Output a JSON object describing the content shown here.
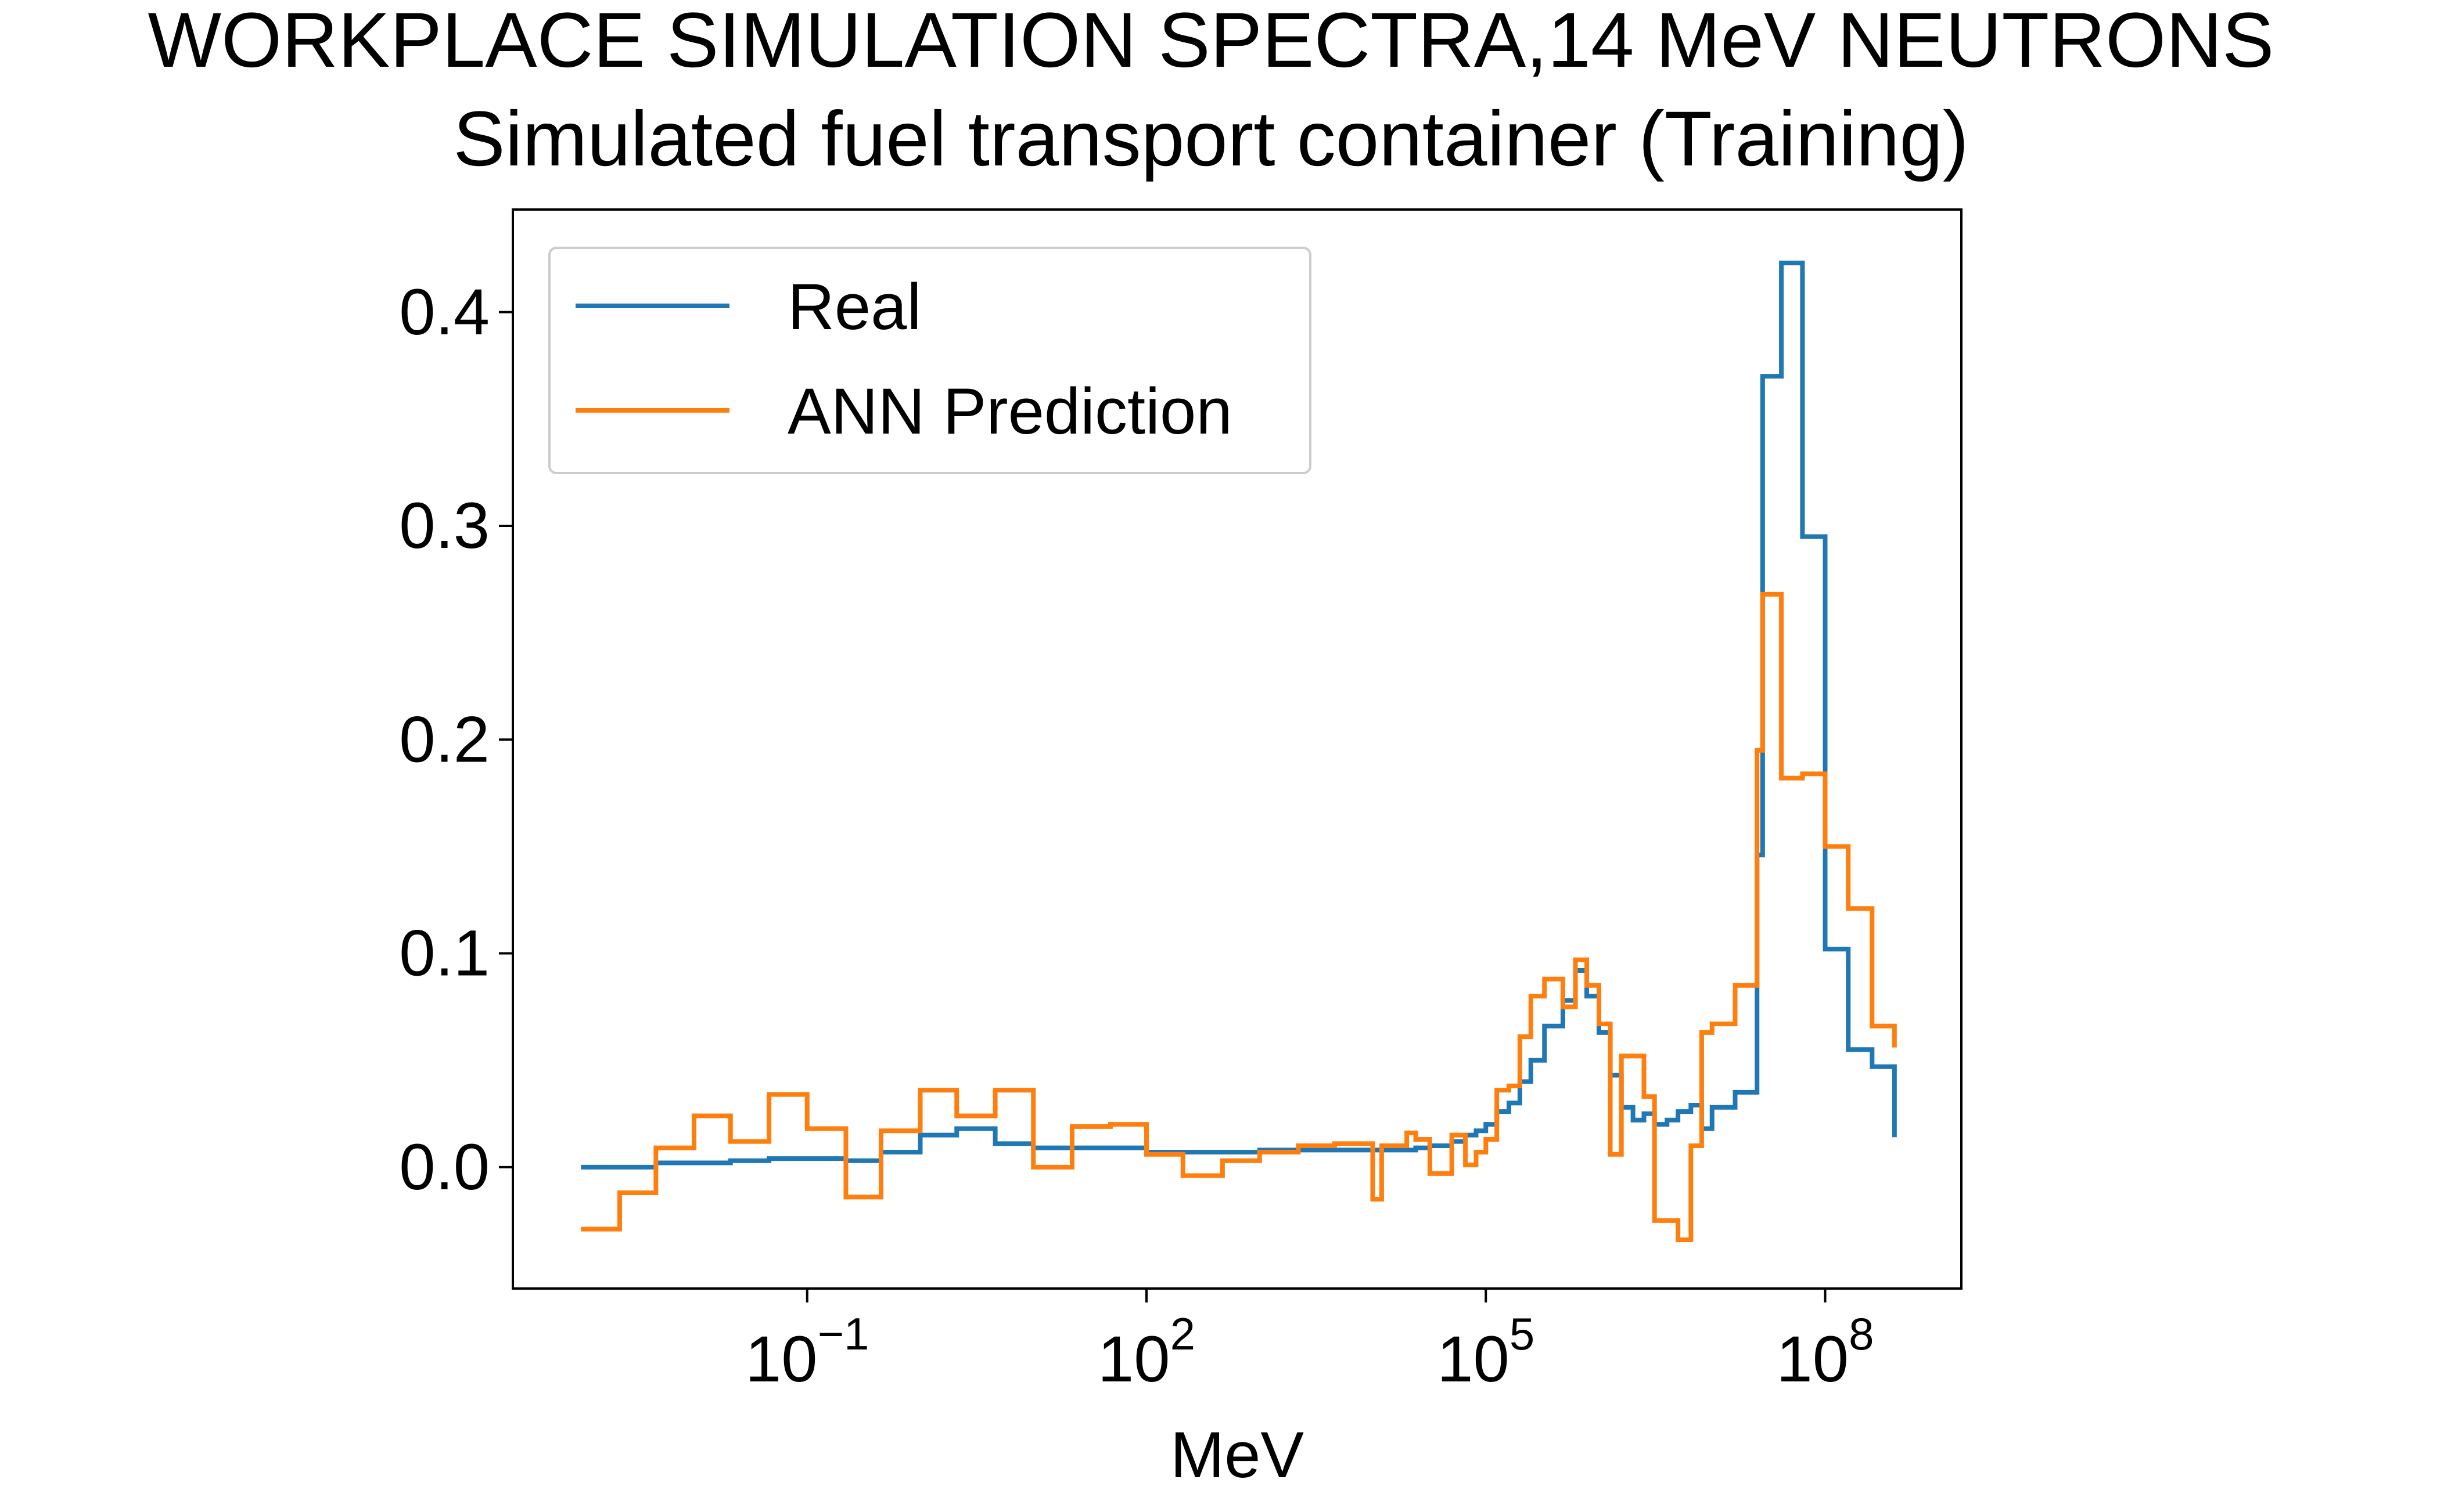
{
  "chart_data": {
    "type": "line",
    "step": "post",
    "title": "WORKPLACE SIMULATION SPECTRA,14 MeV NEUTRONS",
    "subtitle": "Simulated fuel transport container (Training)",
    "x_label": "MeV",
    "x_scale": "log",
    "x": [
      0.001,
      0.0022,
      0.0046,
      0.01,
      0.021,
      0.046,
      0.1,
      0.22,
      0.45,
      1,
      2.1,
      4.6,
      10,
      22,
      48,
      100,
      210,
      470,
      1000,
      2200,
      4600,
      10000,
      12000,
      20000,
      24000,
      32000,
      50000,
      66000,
      82000,
      100000,
      125000,
      160000,
      200000,
      250000,
      330000,
      480000,
      620000,
      780000,
      1000000,
      1260000,
      1580000,
      2000000,
      2500000,
      3100000,
      4000000,
      5000000,
      6500000,
      8100000,
      10000000,
      16000000,
      25000000,
      28000000,
      41000000,
      63000000,
      100000000,
      160000000,
      260000000,
      410000000
    ],
    "series": [
      {
        "name": "Real",
        "color": "#1f77b4",
        "values": [
          0,
          0,
          0.002,
          0.002,
          0.003,
          0.004,
          0.004,
          0.003,
          0.007,
          0.015,
          0.018,
          0.011,
          0.009,
          0.009,
          0.009,
          0.007,
          0.007,
          0.007,
          0.008,
          0.008,
          0.008,
          0.008,
          0.008,
          0.008,
          0.009,
          0.01,
          0.012,
          0.015,
          0.017,
          0.02,
          0.026,
          0.03,
          0.04,
          0.05,
          0.066,
          0.078,
          0.092,
          0.08,
          0.063,
          0.043,
          0.028,
          0.022,
          0.025,
          0.02,
          0.022,
          0.026,
          0.029,
          0.018,
          0.028,
          0.035,
          0.146,
          0.37,
          0.423,
          0.295,
          0.102,
          0.055,
          0.047,
          0.014
        ]
      },
      {
        "name": "ANN Prediction",
        "color": "#ff7f0e",
        "values": [
          -0.029,
          -0.012,
          0.009,
          0.024,
          0.012,
          0.034,
          0.018,
          -0.014,
          0.017,
          0.036,
          0.024,
          0.036,
          0.0,
          0.019,
          0.02,
          0.006,
          -0.004,
          0.003,
          0.007,
          0.01,
          0.011,
          -0.015,
          0.01,
          0.016,
          0.013,
          -0.003,
          0.015,
          0.001,
          0.007,
          0.013,
          0.036,
          0.038,
          0.061,
          0.08,
          0.088,
          0.075,
          0.097,
          0.085,
          0.067,
          0.006,
          0.052,
          0.052,
          0.033,
          -0.025,
          -0.025,
          -0.034,
          0.01,
          0.063,
          0.067,
          0.085,
          0.195,
          0.268,
          0.182,
          0.184,
          0.15,
          0.121,
          0.066,
          0.056
        ]
      }
    ],
    "xlim": [
      0.00025,
      1600000000
    ],
    "xticks": [
      {
        "value": 0.1,
        "label": "10^−1"
      },
      {
        "value": 100,
        "label": "10^2"
      },
      {
        "value": 100000,
        "label": "10^5"
      },
      {
        "value": 100000000,
        "label": "10^8"
      }
    ],
    "ylim": [
      -0.0568,
      0.448
    ],
    "yticks": [
      {
        "value": 0,
        "label": "0.0"
      },
      0.1,
      0.2,
      0.3,
      0.4
    ],
    "grid": false,
    "legend": "upper left"
  }
}
